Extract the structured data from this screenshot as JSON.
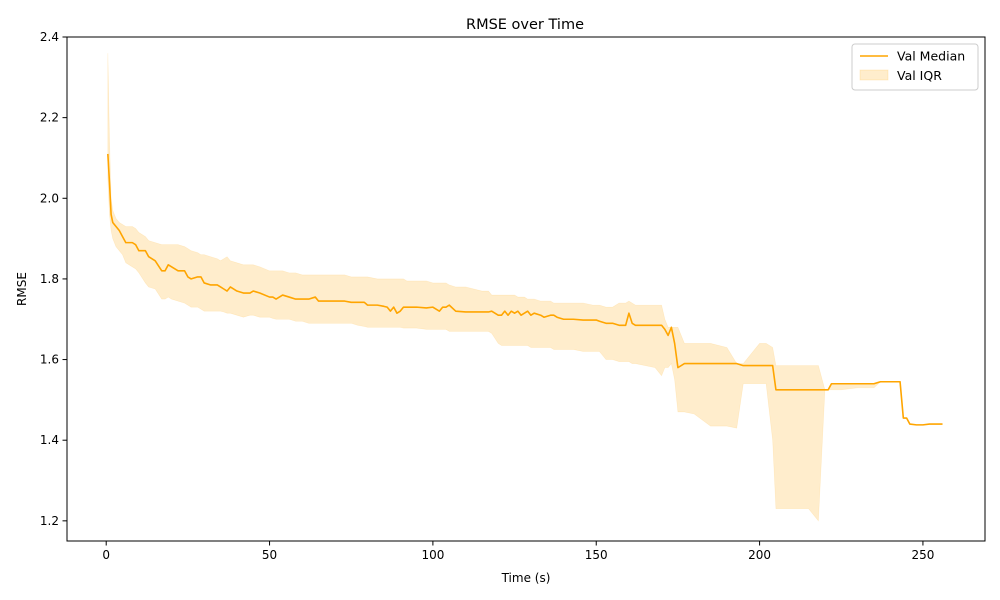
{
  "chart_data": {
    "type": "line",
    "title": "RMSE over Time",
    "xlabel": "Time (s)",
    "ylabel": "RMSE",
    "xlim": [
      -12,
      269
    ],
    "ylim": [
      1.15,
      2.4
    ],
    "xticks": [
      0,
      50,
      100,
      150,
      200,
      250
    ],
    "yticks": [
      1.2,
      1.4,
      1.6,
      1.8,
      2.0,
      2.2,
      2.4
    ],
    "grid": false,
    "legend_position": "top-right",
    "colors": {
      "line": "#ffa500",
      "band": "#ffa500",
      "band_opacity": 0.2
    },
    "series": [
      {
        "name": "Val Median",
        "kind": "line",
        "x": [
          0.5,
          1,
          1.5,
          2,
          3,
          4,
          5,
          6,
          7,
          8,
          9,
          10,
          12,
          13,
          15,
          17,
          18,
          19,
          20,
          22,
          24,
          25,
          26,
          28,
          29,
          30,
          32,
          34,
          35,
          36,
          37,
          38,
          40,
          42,
          44,
          45,
          47,
          50,
          51,
          52,
          54,
          56,
          58,
          60,
          62,
          64,
          65,
          67,
          70,
          73,
          75,
          77,
          79,
          80,
          83,
          85,
          86,
          87,
          88,
          89,
          90,
          91,
          92,
          95,
          98,
          100,
          102,
          103,
          104,
          105,
          107,
          110,
          115,
          117,
          118,
          120,
          121,
          122,
          123,
          124,
          125,
          126,
          127,
          128,
          129,
          130,
          131,
          133,
          134,
          136,
          137,
          138,
          140,
          143,
          146,
          149,
          150,
          151,
          153,
          155,
          157,
          159,
          160,
          161,
          162,
          165,
          168,
          170,
          171,
          172,
          173,
          174,
          175,
          177,
          180,
          185,
          190,
          193,
          195,
          200,
          202,
          204,
          205,
          210,
          215,
          218,
          220,
          221,
          222,
          225,
          230,
          235,
          237,
          240,
          242,
          243,
          244,
          245,
          246,
          248,
          250,
          252,
          255,
          256
        ],
        "y": [
          2.11,
          2.04,
          1.96,
          1.94,
          1.93,
          1.92,
          1.905,
          1.89,
          1.89,
          1.89,
          1.885,
          1.87,
          1.87,
          1.855,
          1.845,
          1.82,
          1.82,
          1.835,
          1.83,
          1.82,
          1.82,
          1.805,
          1.8,
          1.805,
          1.805,
          1.79,
          1.785,
          1.785,
          1.78,
          1.775,
          1.77,
          1.78,
          1.77,
          1.765,
          1.765,
          1.77,
          1.765,
          1.755,
          1.755,
          1.75,
          1.76,
          1.755,
          1.75,
          1.75,
          1.75,
          1.755,
          1.745,
          1.745,
          1.745,
          1.745,
          1.742,
          1.742,
          1.742,
          1.735,
          1.735,
          1.732,
          1.73,
          1.72,
          1.73,
          1.715,
          1.72,
          1.73,
          1.73,
          1.73,
          1.728,
          1.73,
          1.72,
          1.73,
          1.73,
          1.735,
          1.72,
          1.718,
          1.718,
          1.718,
          1.72,
          1.71,
          1.71,
          1.72,
          1.71,
          1.72,
          1.715,
          1.72,
          1.71,
          1.715,
          1.72,
          1.71,
          1.715,
          1.71,
          1.705,
          1.71,
          1.71,
          1.705,
          1.7,
          1.7,
          1.698,
          1.698,
          1.698,
          1.695,
          1.69,
          1.69,
          1.685,
          1.685,
          1.715,
          1.69,
          1.685,
          1.685,
          1.685,
          1.685,
          1.675,
          1.66,
          1.68,
          1.64,
          1.58,
          1.59,
          1.59,
          1.59,
          1.59,
          1.59,
          1.585,
          1.585,
          1.585,
          1.585,
          1.525,
          1.525,
          1.525,
          1.525,
          1.525,
          1.525,
          1.54,
          1.54,
          1.54,
          1.54,
          1.545,
          1.545,
          1.545,
          1.545,
          1.455,
          1.455,
          1.44,
          1.438,
          1.438,
          1.44,
          1.44,
          1.44
        ]
      },
      {
        "name": "Val IQR",
        "kind": "band",
        "x": [
          0.5,
          1,
          1.5,
          2,
          3,
          4,
          5,
          6,
          7,
          8,
          9,
          10,
          12,
          13,
          15,
          17,
          18,
          19,
          20,
          22,
          24,
          25,
          26,
          28,
          29,
          30,
          32,
          34,
          35,
          36,
          37,
          38,
          40,
          42,
          44,
          45,
          47,
          50,
          51,
          52,
          54,
          56,
          58,
          60,
          62,
          64,
          65,
          67,
          70,
          73,
          75,
          77,
          79,
          80,
          83,
          85,
          86,
          87,
          88,
          89,
          90,
          91,
          92,
          95,
          98,
          100,
          102,
          103,
          104,
          105,
          107,
          110,
          115,
          117,
          118,
          120,
          121,
          122,
          123,
          124,
          125,
          126,
          127,
          128,
          129,
          130,
          131,
          133,
          134,
          136,
          137,
          138,
          140,
          143,
          146,
          149,
          150,
          151,
          153,
          155,
          157,
          159,
          160,
          161,
          162,
          165,
          168,
          170,
          171,
          172,
          173,
          174,
          175,
          177,
          180,
          185,
          190,
          193,
          195,
          200,
          202,
          204,
          205,
          210,
          215,
          218,
          220,
          221,
          222,
          225,
          230,
          235,
          237,
          240,
          242,
          243,
          244,
          245,
          246,
          248,
          250,
          252,
          255,
          256
        ],
        "lower": [
          2.05,
          1.96,
          1.92,
          1.9,
          1.88,
          1.87,
          1.86,
          1.84,
          1.835,
          1.83,
          1.825,
          1.815,
          1.79,
          1.78,
          1.775,
          1.75,
          1.75,
          1.755,
          1.75,
          1.745,
          1.74,
          1.735,
          1.73,
          1.73,
          1.725,
          1.72,
          1.72,
          1.72,
          1.72,
          1.718,
          1.715,
          1.715,
          1.71,
          1.705,
          1.71,
          1.71,
          1.705,
          1.705,
          1.702,
          1.7,
          1.7,
          1.7,
          1.695,
          1.695,
          1.69,
          1.69,
          1.69,
          1.69,
          1.69,
          1.69,
          1.69,
          1.685,
          1.682,
          1.68,
          1.68,
          1.68,
          1.68,
          1.68,
          1.68,
          1.68,
          1.68,
          1.678,
          1.678,
          1.678,
          1.675,
          1.675,
          1.675,
          1.675,
          1.675,
          1.67,
          1.67,
          1.67,
          1.67,
          1.67,
          1.665,
          1.64,
          1.635,
          1.635,
          1.635,
          1.635,
          1.635,
          1.635,
          1.635,
          1.635,
          1.635,
          1.63,
          1.63,
          1.63,
          1.63,
          1.63,
          1.625,
          1.625,
          1.625,
          1.625,
          1.62,
          1.62,
          1.62,
          1.62,
          1.6,
          1.6,
          1.595,
          1.595,
          1.595,
          1.59,
          1.59,
          1.585,
          1.58,
          1.56,
          1.58,
          1.58,
          1.59,
          1.55,
          1.47,
          1.47,
          1.465,
          1.435,
          1.435,
          1.43,
          1.54,
          1.54,
          1.54,
          1.4,
          1.23,
          1.23,
          1.23,
          1.2,
          1.525,
          1.525,
          1.525,
          1.525,
          1.53,
          1.53,
          1.545,
          1.545,
          1.545,
          1.545,
          1.455,
          1.455,
          1.44,
          1.438,
          1.438,
          1.44,
          1.44,
          1.44
        ],
        "upper": [
          2.36,
          2.15,
          2.0,
          1.97,
          1.95,
          1.94,
          1.935,
          1.93,
          1.93,
          1.93,
          1.925,
          1.915,
          1.905,
          1.895,
          1.89,
          1.885,
          1.885,
          1.885,
          1.885,
          1.885,
          1.88,
          1.875,
          1.87,
          1.865,
          1.86,
          1.86,
          1.855,
          1.85,
          1.845,
          1.85,
          1.855,
          1.845,
          1.84,
          1.835,
          1.835,
          1.835,
          1.83,
          1.82,
          1.82,
          1.82,
          1.82,
          1.815,
          1.815,
          1.81,
          1.81,
          1.81,
          1.81,
          1.81,
          1.81,
          1.81,
          1.805,
          1.805,
          1.805,
          1.805,
          1.8,
          1.8,
          1.8,
          1.8,
          1.8,
          1.8,
          1.8,
          1.8,
          1.795,
          1.795,
          1.795,
          1.79,
          1.79,
          1.79,
          1.79,
          1.785,
          1.78,
          1.78,
          1.77,
          1.77,
          1.76,
          1.76,
          1.76,
          1.76,
          1.76,
          1.76,
          1.76,
          1.755,
          1.755,
          1.755,
          1.75,
          1.75,
          1.75,
          1.745,
          1.745,
          1.745,
          1.74,
          1.74,
          1.74,
          1.74,
          1.74,
          1.735,
          1.735,
          1.735,
          1.73,
          1.73,
          1.74,
          1.74,
          1.745,
          1.74,
          1.735,
          1.735,
          1.735,
          1.735,
          1.7,
          1.68,
          1.68,
          1.68,
          1.68,
          1.64,
          1.64,
          1.64,
          1.63,
          1.59,
          1.59,
          1.64,
          1.64,
          1.63,
          1.585,
          1.585,
          1.585,
          1.585,
          1.525,
          1.525,
          1.54,
          1.54,
          1.54,
          1.54,
          1.545,
          1.545,
          1.545,
          1.545,
          1.455,
          1.455,
          1.44,
          1.438,
          1.438,
          1.44,
          1.44,
          1.44
        ]
      }
    ]
  }
}
